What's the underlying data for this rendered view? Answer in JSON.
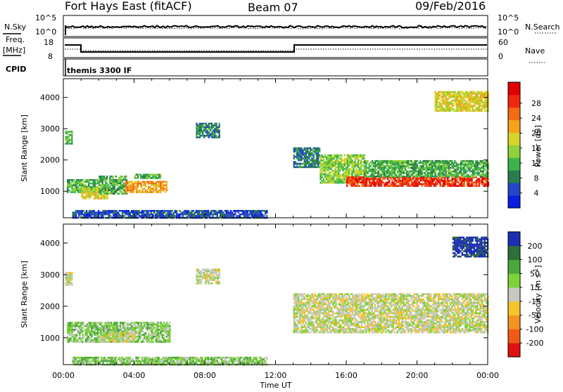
{
  "header": {
    "station": "Fort Hays East (fitACF)",
    "beam": "Beam 07",
    "date": "09/Feb/2016"
  },
  "top_panels": {
    "nsky_label": "N.Sky",
    "nsearch_label": "N.Search",
    "noise_ticks_left": [
      "10^5",
      "10^0"
    ],
    "noise_ticks_right": [
      "10^5",
      "10^0"
    ],
    "freq_label_1": "Freq.",
    "freq_label_2": "[MHz]",
    "freq_ticks": [
      "18",
      "8"
    ],
    "nave_label": "Nave",
    "nave_ticks": [
      "60",
      "0"
    ],
    "cpid_label": "CPID",
    "cpid_value": "themis 3300 IF"
  },
  "chart_data": [
    {
      "type": "heatmap",
      "name": "power",
      "ylabel": "Slant Range [km]",
      "xlabel": "Time UT",
      "xlim": [
        0,
        24
      ],
      "ylim": [
        150,
        4600
      ],
      "x_tick_labels": [
        "00:00",
        "04:00",
        "08:00",
        "12:00",
        "16:00",
        "20:00",
        "00:00"
      ],
      "y_ticks": [
        1000,
        2000,
        3000,
        4000
      ],
      "colorbar": {
        "label": "Power [dB]",
        "ticks": [
          "4",
          "8",
          "12",
          "16",
          "20",
          "24",
          "28"
        ],
        "colors": [
          "#0a1ee0",
          "#2646c8",
          "#2a7d4a",
          "#3cb44b",
          "#8fd13a",
          "#d6d428",
          "#f7a21a",
          "#f46b12",
          "#f0280e",
          "#e00000"
        ]
      },
      "regions": [
        {
          "t": [
            0.1,
            0.5
          ],
          "r": [
            2550,
            2950
          ],
          "level": 3
        },
        {
          "t": [
            0.2,
            2.0
          ],
          "r": [
            1000,
            1400
          ],
          "level": 3
        },
        {
          "t": [
            1.0,
            2.5
          ],
          "r": [
            800,
            1150
          ],
          "level": 5
        },
        {
          "t": [
            2.0,
            3.6
          ],
          "r": [
            950,
            1550
          ],
          "level": 3
        },
        {
          "t": [
            3.5,
            5.8
          ],
          "r": [
            1000,
            1350
          ],
          "level": 6
        },
        {
          "t": [
            4.0,
            5.5
          ],
          "r": [
            1450,
            1600
          ],
          "level": 3
        },
        {
          "t": [
            0.5,
            11.5
          ],
          "r": [
            180,
            420
          ],
          "level": 1
        },
        {
          "t": [
            13.0,
            14.5
          ],
          "r": [
            1800,
            2450
          ],
          "level": 2
        },
        {
          "t": [
            14.5,
            17.0
          ],
          "r": [
            1300,
            2200
          ],
          "level": 4
        },
        {
          "t": [
            16.0,
            24.0
          ],
          "r": [
            1200,
            1500
          ],
          "level": 8
        },
        {
          "t": [
            17.0,
            24.0
          ],
          "r": [
            1500,
            2050
          ],
          "level": 3
        },
        {
          "t": [
            21.0,
            24.0
          ],
          "r": [
            3600,
            4250
          ],
          "level": 5
        },
        {
          "t": [
            7.5,
            8.8
          ],
          "r": [
            2750,
            3200
          ],
          "level": 2
        }
      ]
    },
    {
      "type": "heatmap",
      "name": "velocity",
      "ylabel": "Slant Range [km]",
      "xlabel": "Time UT",
      "xlim": [
        0,
        24
      ],
      "ylim": [
        150,
        4600
      ],
      "x_tick_labels": [
        "00:00",
        "04:00",
        "08:00",
        "12:00",
        "16:00",
        "20:00",
        "00:00"
      ],
      "y_ticks": [
        1000,
        2000,
        3000,
        4000
      ],
      "colorbar": {
        "label": "Velocity [m s",
        "label_sup": "-1",
        "label_close": "]",
        "ticks": [
          "200",
          "100",
          "50",
          "15",
          "-15",
          "-50",
          "-100",
          "-200"
        ],
        "colors": [
          "#1c2fb4",
          "#2f6f3a",
          "#4aa83a",
          "#7ed33a",
          "#c8c8c0",
          "#f4c42a",
          "#f49222",
          "#f05a14",
          "#e01010"
        ]
      },
      "regions": [
        {
          "t": [
            0.1,
            0.5
          ],
          "r": [
            2700,
            3100
          ],
          "level": 4
        },
        {
          "t": [
            0.2,
            6.0
          ],
          "r": [
            900,
            1550
          ],
          "level": 3
        },
        {
          "t": [
            2.0,
            4.0
          ],
          "r": [
            900,
            1200
          ],
          "level": 4
        },
        {
          "t": [
            0.5,
            11.5
          ],
          "r": [
            180,
            420
          ],
          "level": 3
        },
        {
          "t": [
            13.0,
            24.0
          ],
          "r": [
            1200,
            2450
          ],
          "level": 4
        },
        {
          "t": [
            22.0,
            24.0
          ],
          "r": [
            3600,
            4250
          ],
          "level": 0
        },
        {
          "t": [
            7.5,
            8.8
          ],
          "r": [
            2750,
            3200
          ],
          "level": 4
        }
      ]
    }
  ]
}
